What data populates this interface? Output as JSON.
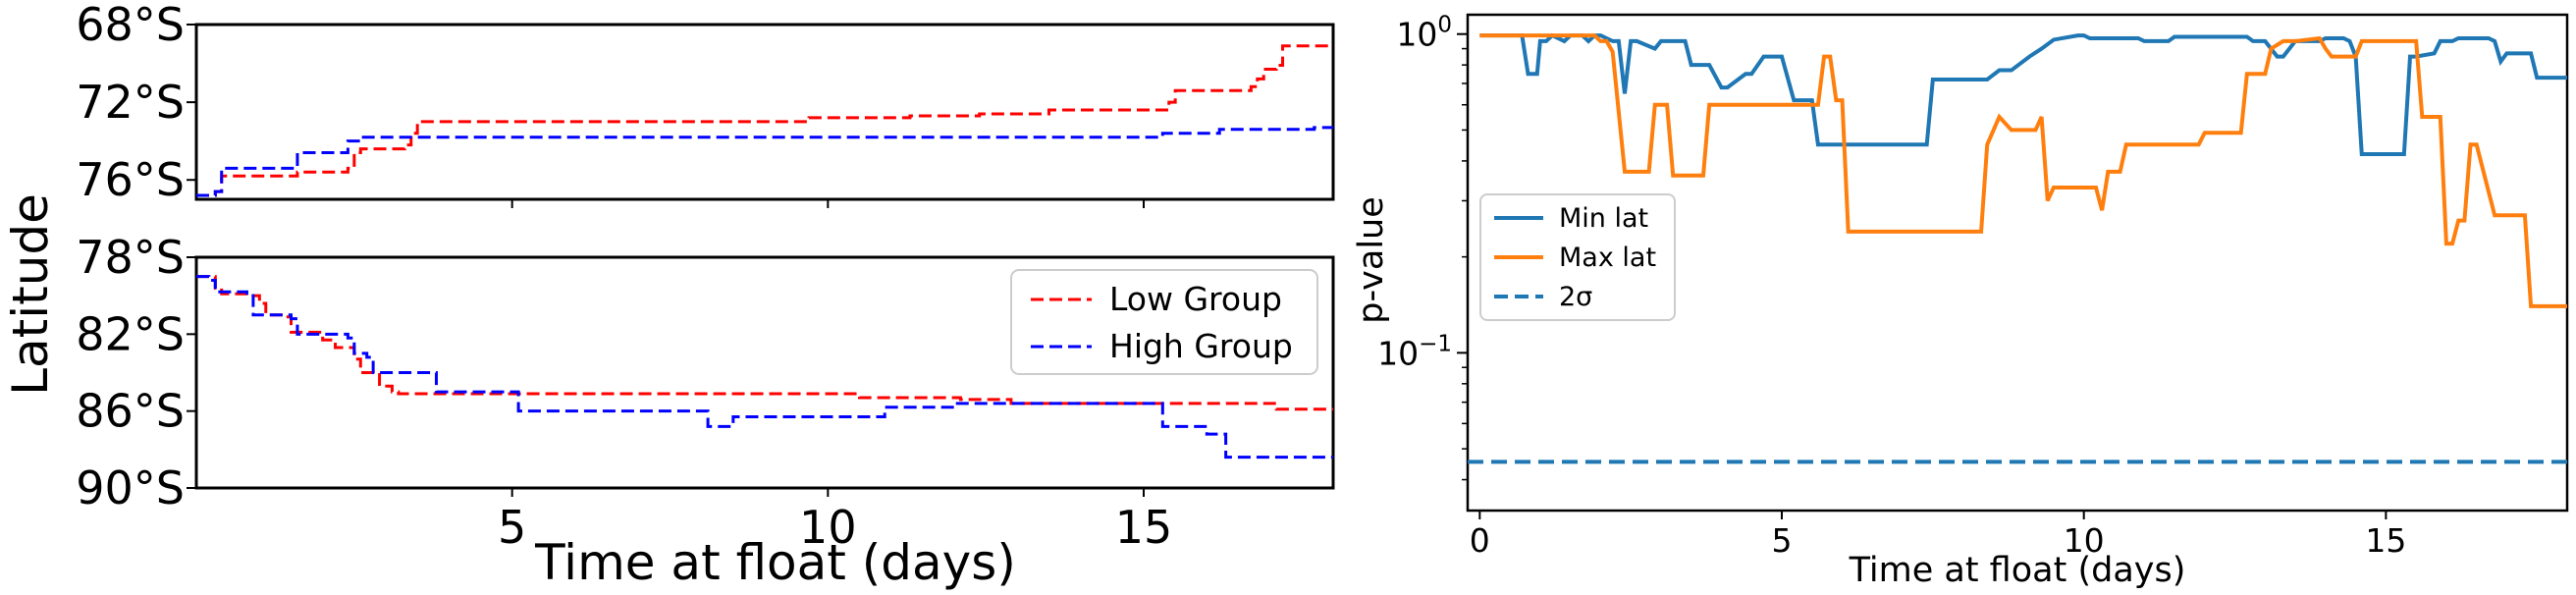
{
  "chart_data": [
    {
      "type": "line",
      "panel": "left-top",
      "ylabel": "Latitude",
      "xlim": [
        0,
        18
      ],
      "ylim": [
        -77,
        -68
      ],
      "ytick_labels": [
        "68°S",
        "72°S",
        "76°S"
      ],
      "ytick_values": [
        -68,
        -72,
        -76
      ],
      "series": [
        {
          "name": "Low Group",
          "color": "#ff0000",
          "dash": true,
          "x": [
            0,
            0.3,
            0.4,
            1.6,
            2.4,
            2.5,
            2.6,
            3.3,
            3.4,
            3.5,
            9.6,
            9.7,
            11.2,
            11.3,
            12.3,
            12.4,
            13.4,
            13.5,
            15.3,
            15.4,
            15.5,
            16.7,
            16.8,
            16.9,
            17.1,
            17.2,
            18
          ],
          "y": [
            -76.8,
            -76.6,
            -75.8,
            -75.6,
            -75.4,
            -74.6,
            -74.4,
            -74.2,
            -73.6,
            -73.0,
            -73.0,
            -72.8,
            -72.8,
            -72.7,
            -72.7,
            -72.6,
            -72.6,
            -72.4,
            -72.4,
            -72.0,
            -71.4,
            -71.2,
            -70.8,
            -70.3,
            -70.1,
            -69.1,
            -69.1
          ],
          "step": true
        },
        {
          "name": "High Group",
          "color": "#0000ff",
          "dash": true,
          "x": [
            0,
            0.3,
            0.4,
            1.5,
            1.6,
            2.3,
            2.4,
            2.6,
            15.2,
            15.3,
            16.1,
            16.2,
            17.6,
            17.7,
            18
          ],
          "y": [
            -76.8,
            -76.6,
            -75.4,
            -75.4,
            -74.6,
            -74.6,
            -74.0,
            -73.8,
            -73.8,
            -73.6,
            -73.6,
            -73.4,
            -73.4,
            -73.3,
            -73.3
          ],
          "step": true
        }
      ]
    },
    {
      "type": "line",
      "panel": "left-bottom",
      "xlabel": "Time at float (days)",
      "xlim": [
        0,
        18
      ],
      "ylim": [
        -90,
        -78
      ],
      "xtick_labels": [
        "5",
        "10",
        "15"
      ],
      "xtick_values": [
        5,
        10,
        15
      ],
      "ytick_labels": [
        "78°S",
        "82°S",
        "86°S",
        "90°S"
      ],
      "ytick_values": [
        -78,
        -82,
        -86,
        -90
      ],
      "series": [
        {
          "name": "Low Group",
          "color": "#ff0000",
          "dash": true,
          "x": [
            0,
            0.3,
            0.4,
            0.9,
            1.0,
            1.1,
            1.4,
            1.5,
            2.0,
            2.2,
            2.5,
            2.6,
            2.8,
            2.9,
            3.1,
            3.2,
            10.4,
            10.5,
            12.0,
            12.1,
            12.8,
            12.9,
            17.0,
            17.1,
            18
          ],
          "y": [
            -79.0,
            -79.6,
            -79.9,
            -80.0,
            -80.4,
            -81.0,
            -81.1,
            -81.9,
            -82.3,
            -82.7,
            -83.3,
            -84.0,
            -84.1,
            -84.7,
            -85.0,
            -85.1,
            -85.1,
            -85.3,
            -85.3,
            -85.4,
            -85.4,
            -85.6,
            -85.6,
            -85.9,
            -85.9
          ],
          "step": true
        },
        {
          "name": "High Group",
          "color": "#0000ff",
          "dash": true,
          "x": [
            0,
            0.2,
            0.3,
            0.8,
            0.9,
            1.5,
            1.6,
            2.4,
            2.5,
            2.7,
            2.8,
            3.7,
            3.8,
            5.0,
            5.1,
            8.0,
            8.1,
            8.4,
            8.5,
            10.8,
            10.9,
            11.9,
            12.0,
            15.2,
            15.3,
            15.9,
            16.0,
            16.2,
            16.3,
            18
          ],
          "y": [
            -79.0,
            -79.2,
            -79.8,
            -80.0,
            -81.0,
            -81.2,
            -82.0,
            -82.2,
            -83.0,
            -83.2,
            -84.0,
            -84.0,
            -85.0,
            -85.0,
            -86.0,
            -86.0,
            -86.8,
            -86.8,
            -86.3,
            -86.3,
            -85.8,
            -85.8,
            -85.6,
            -85.6,
            -86.8,
            -86.8,
            -87.2,
            -87.2,
            -88.4,
            -88.4
          ],
          "step": true
        }
      ],
      "legend": {
        "placement": "upper-right",
        "entries": [
          "Low Group",
          "High Group"
        ]
      }
    },
    {
      "type": "line",
      "panel": "right",
      "xlabel": "Time at float (days)",
      "ylabel": "p-value",
      "yscale": "log",
      "xlim": [
        -0.2,
        18
      ],
      "ylim": [
        0.032,
        1.15
      ],
      "xtick_labels": [
        "0",
        "5",
        "10",
        "15"
      ],
      "xtick_values": [
        0,
        5,
        10,
        15
      ],
      "ytick_main": "10",
      "ytick_exps": [
        "0",
        "−1"
      ],
      "ytick_values": [
        1.0,
        0.1
      ],
      "series": [
        {
          "name": "Min lat",
          "color": "#1f77b4",
          "dash": false,
          "x": [
            0,
            0.7,
            0.8,
            0.95,
            1.0,
            1.1,
            1.2,
            1.4,
            1.5,
            1.7,
            1.8,
            1.9,
            2.0,
            2.2,
            2.3,
            2.4,
            2.5,
            2.6,
            2.9,
            3.0,
            3.4,
            3.5,
            3.8,
            4.0,
            4.1,
            4.4,
            4.5,
            4.7,
            4.8,
            5.0,
            5.2,
            5.5,
            5.6,
            5.8,
            5.9,
            7.4,
            7.5,
            8.4,
            8.6,
            8.8,
            9.1,
            9.3,
            9.5,
            9.9,
            10.0,
            10.1,
            10.9,
            11.0,
            11.1,
            11.4,
            11.5,
            12.7,
            12.8,
            13.0,
            13.2,
            13.3,
            13.5,
            13.9,
            14.0,
            14.3,
            14.4,
            14.5,
            14.6,
            15.3,
            15.4,
            15.5,
            15.8,
            15.9,
            16.1,
            16.2,
            16.7,
            16.8,
            16.9,
            17.0,
            17.4,
            17.5,
            18
          ],
          "y": [
            0.99,
            0.99,
            0.75,
            0.75,
            0.95,
            0.95,
            0.99,
            0.95,
            0.99,
            0.99,
            0.95,
            0.99,
            0.99,
            0.95,
            0.95,
            0.65,
            0.95,
            0.95,
            0.9,
            0.95,
            0.95,
            0.8,
            0.8,
            0.68,
            0.68,
            0.75,
            0.75,
            0.85,
            0.85,
            0.85,
            0.62,
            0.62,
            0.45,
            0.45,
            0.45,
            0.45,
            0.72,
            0.72,
            0.77,
            0.77,
            0.85,
            0.9,
            0.96,
            0.99,
            0.99,
            0.97,
            0.97,
            0.95,
            0.95,
            0.95,
            0.98,
            0.98,
            0.95,
            0.95,
            0.85,
            0.85,
            0.95,
            0.95,
            0.97,
            0.97,
            0.95,
            0.85,
            0.42,
            0.42,
            0.85,
            0.85,
            0.87,
            0.95,
            0.95,
            0.97,
            0.97,
            0.95,
            0.82,
            0.87,
            0.87,
            0.73,
            0.73
          ],
          "step": false
        },
        {
          "name": "Max lat",
          "color": "#ff7f0e",
          "dash": false,
          "x": [
            0,
            1.9,
            2.0,
            2.1,
            2.2,
            2.4,
            2.5,
            2.8,
            2.9,
            3.1,
            3.2,
            3.7,
            3.8,
            5.6,
            5.7,
            5.8,
            5.9,
            6.0,
            6.1,
            8.3,
            8.4,
            8.6,
            8.8,
            9.2,
            9.3,
            9.4,
            9.5,
            10.2,
            10.3,
            10.4,
            10.6,
            10.7,
            11.9,
            12.0,
            12.6,
            12.7,
            13.0,
            13.1,
            13.3,
            13.5,
            13.9,
            14.0,
            14.1,
            14.5,
            14.6,
            15.5,
            15.6,
            15.9,
            16.0,
            16.1,
            16.2,
            16.3,
            16.4,
            16.5,
            16.8,
            16.9,
            17.3,
            17.4,
            17.5,
            18
          ],
          "y": [
            0.99,
            0.99,
            0.95,
            0.95,
            0.88,
            0.37,
            0.37,
            0.37,
            0.6,
            0.6,
            0.36,
            0.36,
            0.6,
            0.6,
            0.85,
            0.85,
            0.62,
            0.62,
            0.24,
            0.24,
            0.45,
            0.55,
            0.5,
            0.5,
            0.55,
            0.3,
            0.33,
            0.33,
            0.28,
            0.37,
            0.37,
            0.45,
            0.45,
            0.49,
            0.49,
            0.75,
            0.75,
            0.9,
            0.95,
            0.95,
            0.97,
            0.9,
            0.85,
            0.85,
            0.95,
            0.95,
            0.55,
            0.55,
            0.22,
            0.22,
            0.26,
            0.26,
            0.45,
            0.45,
            0.27,
            0.27,
            0.27,
            0.14,
            0.14,
            0.14
          ],
          "step": false
        },
        {
          "name": "2σ",
          "color": "#1f77b4",
          "dash": true,
          "x": [
            -0.2,
            18
          ],
          "y": [
            0.0455,
            0.0455
          ],
          "step": false
        }
      ],
      "legend": {
        "placement": "center-left",
        "entries": [
          "Min lat",
          "Max lat",
          "2σ"
        ]
      }
    }
  ]
}
